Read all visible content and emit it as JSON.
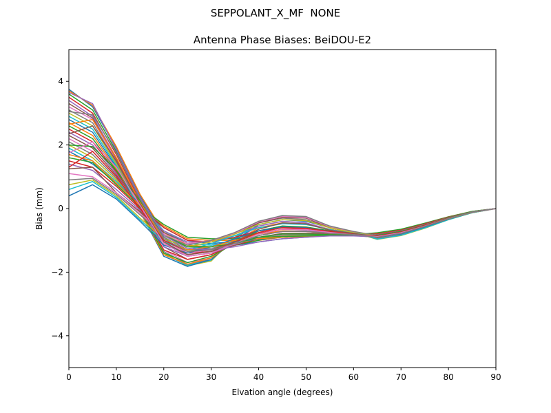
{
  "figure": {
    "suptitle": "SEPPOLANT_X_MF  NONE"
  },
  "chart_data": {
    "type": "line",
    "title": "Antenna Phase Biases: BeiDOU-E2",
    "xlabel": "Elvation angle (degrees)",
    "ylabel": "Bias (mm)",
    "xlim": [
      0,
      90
    ],
    "ylim": [
      -5,
      5
    ],
    "xticks": [
      0,
      10,
      20,
      30,
      40,
      50,
      60,
      70,
      80,
      90
    ],
    "xtick_labels": [
      "0",
      "10",
      "20",
      "30",
      "40",
      "50",
      "60",
      "70",
      "80",
      "90"
    ],
    "yticks": [
      -4,
      -2,
      0,
      2,
      4
    ],
    "ytick_labels": [
      "−4",
      "−2",
      "0",
      "2",
      "4"
    ],
    "grid": false,
    "legend": "none",
    "x": [
      0,
      5,
      10,
      15,
      20,
      25,
      30,
      35,
      40,
      45,
      50,
      55,
      60,
      65,
      70,
      75,
      80,
      85,
      90
    ],
    "colors": [
      "#1f77b4",
      "#ff7f0e",
      "#2ca02c",
      "#d62728",
      "#9467bd",
      "#8c564b",
      "#e377c2",
      "#7f7f7f",
      "#bcbd22",
      "#17becf"
    ],
    "series": [
      {
        "values": [
          3.75,
          3.2,
          1.9,
          0.4,
          -0.8,
          -1.2,
          -1.25,
          -1.15,
          -1.05,
          -0.95,
          -0.9,
          -0.85,
          -0.85,
          -0.9,
          -0.75,
          -0.55,
          -0.3,
          -0.1,
          0.0
        ]
      },
      {
        "values": [
          3.7,
          3.25,
          1.95,
          0.45,
          -0.75,
          -1.15,
          -1.2,
          -1.1,
          -1.0,
          -0.9,
          -0.88,
          -0.85,
          -0.85,
          -0.88,
          -0.75,
          -0.55,
          -0.3,
          -0.1,
          0.0
        ]
      },
      {
        "values": [
          3.6,
          3.1,
          1.8,
          0.3,
          -0.9,
          -1.3,
          -1.3,
          -1.15,
          -1.0,
          -0.85,
          -0.8,
          -0.8,
          -0.82,
          -0.9,
          -0.78,
          -0.55,
          -0.32,
          -0.12,
          0.0
        ]
      },
      {
        "values": [
          3.5,
          3.0,
          1.7,
          0.25,
          -1.0,
          -1.4,
          -1.35,
          -1.15,
          -0.95,
          -0.8,
          -0.78,
          -0.78,
          -0.82,
          -0.92,
          -0.8,
          -0.58,
          -0.33,
          -0.12,
          0.0
        ]
      },
      {
        "values": [
          3.4,
          2.9,
          1.6,
          0.2,
          -1.1,
          -1.5,
          -1.4,
          -1.1,
          -0.85,
          -0.7,
          -0.7,
          -0.75,
          -0.8,
          -0.9,
          -0.78,
          -0.56,
          -0.32,
          -0.12,
          0.0
        ]
      },
      {
        "values": [
          3.3,
          2.85,
          1.55,
          0.15,
          -1.2,
          -1.6,
          -1.45,
          -1.05,
          -0.7,
          -0.55,
          -0.6,
          -0.72,
          -0.8,
          -0.92,
          -0.8,
          -0.58,
          -0.33,
          -0.12,
          0.0
        ]
      },
      {
        "values": [
          3.2,
          2.8,
          1.5,
          0.1,
          -1.3,
          -1.7,
          -1.55,
          -1.0,
          -0.55,
          -0.4,
          -0.45,
          -0.65,
          -0.78,
          -0.95,
          -0.82,
          -0.6,
          -0.34,
          -0.13,
          0.0
        ]
      },
      {
        "values": [
          3.1,
          2.7,
          1.45,
          0.05,
          -1.35,
          -1.75,
          -1.6,
          -0.95,
          -0.45,
          -0.3,
          -0.35,
          -0.6,
          -0.76,
          -0.95,
          -0.83,
          -0.6,
          -0.34,
          -0.13,
          0.0
        ]
      },
      {
        "values": [
          3.0,
          2.6,
          1.4,
          0.0,
          -1.4,
          -1.8,
          -1.65,
          -0.9,
          -0.4,
          -0.25,
          -0.3,
          -0.58,
          -0.75,
          -0.97,
          -0.85,
          -0.62,
          -0.35,
          -0.13,
          0.0
        ]
      },
      {
        "values": [
          2.9,
          2.5,
          1.35,
          -0.05,
          -1.45,
          -1.78,
          -1.62,
          -0.92,
          -0.42,
          -0.22,
          -0.28,
          -0.55,
          -0.74,
          -0.96,
          -0.84,
          -0.61,
          -0.35,
          -0.13,
          0.0
        ]
      },
      {
        "values": [
          2.8,
          2.4,
          1.3,
          -0.1,
          -1.5,
          -1.82,
          -1.6,
          -1.0,
          -0.5,
          -0.35,
          -0.4,
          -0.6,
          -0.75,
          -0.9,
          -0.8,
          -0.58,
          -0.33,
          -0.12,
          0.0
        ]
      },
      {
        "values": [
          2.7,
          2.3,
          1.25,
          -0.1,
          -1.45,
          -1.75,
          -1.55,
          -1.05,
          -0.6,
          -0.45,
          -0.5,
          -0.65,
          -0.78,
          -0.88,
          -0.78,
          -0.56,
          -0.32,
          -0.12,
          0.0
        ]
      },
      {
        "values": [
          2.6,
          2.2,
          1.2,
          -0.05,
          -1.4,
          -1.7,
          -1.5,
          -1.1,
          -0.7,
          -0.55,
          -0.58,
          -0.7,
          -0.8,
          -0.86,
          -0.76,
          -0.55,
          -0.31,
          -0.11,
          0.0
        ]
      },
      {
        "values": [
          2.5,
          2.1,
          1.15,
          0.0,
          -1.3,
          -1.6,
          -1.45,
          -1.12,
          -0.78,
          -0.65,
          -0.66,
          -0.74,
          -0.82,
          -0.85,
          -0.74,
          -0.54,
          -0.3,
          -0.11,
          0.0
        ]
      },
      {
        "values": [
          2.4,
          2.0,
          1.1,
          0.0,
          -1.2,
          -1.5,
          -1.4,
          -1.15,
          -0.85,
          -0.72,
          -0.72,
          -0.77,
          -0.83,
          -0.84,
          -0.73,
          -0.53,
          -0.3,
          -0.11,
          0.0
        ]
      },
      {
        "values": [
          2.3,
          1.9,
          1.05,
          0.05,
          -1.1,
          -1.45,
          -1.35,
          -1.15,
          -0.9,
          -0.78,
          -0.77,
          -0.8,
          -0.84,
          -0.83,
          -0.72,
          -0.52,
          -0.29,
          -0.1,
          0.0
        ]
      },
      {
        "values": [
          2.2,
          1.8,
          1.0,
          0.05,
          -1.0,
          -1.4,
          -1.3,
          -1.12,
          -0.92,
          -0.82,
          -0.8,
          -0.82,
          -0.85,
          -0.82,
          -0.71,
          -0.51,
          -0.29,
          -0.1,
          0.0
        ]
      },
      {
        "values": [
          2.1,
          1.7,
          0.95,
          0.1,
          -0.9,
          -1.3,
          -1.25,
          -1.1,
          -0.95,
          -0.85,
          -0.83,
          -0.83,
          -0.85,
          -0.81,
          -0.7,
          -0.5,
          -0.28,
          -0.1,
          0.0
        ]
      },
      {
        "values": [
          2.0,
          1.6,
          0.9,
          0.1,
          -0.8,
          -1.2,
          -1.2,
          -1.08,
          -0.95,
          -0.87,
          -0.85,
          -0.84,
          -0.85,
          -0.8,
          -0.69,
          -0.5,
          -0.28,
          -0.1,
          0.0
        ]
      },
      {
        "values": [
          1.9,
          1.5,
          0.85,
          0.15,
          -0.7,
          -1.1,
          -1.15,
          -1.05,
          -0.96,
          -0.89,
          -0.86,
          -0.85,
          -0.85,
          -0.79,
          -0.68,
          -0.49,
          -0.27,
          -0.09,
          0.0
        ]
      },
      {
        "values": [
          1.8,
          1.4,
          0.8,
          0.15,
          -0.6,
          -1.0,
          -1.1,
          -1.03,
          -0.97,
          -0.9,
          -0.87,
          -0.85,
          -0.84,
          -0.78,
          -0.67,
          -0.48,
          -0.27,
          -0.09,
          0.0
        ]
      },
      {
        "values": [
          1.7,
          1.5,
          0.8,
          0.1,
          -0.55,
          -0.95,
          -1.0,
          -1.0,
          -0.95,
          -0.9,
          -0.87,
          -0.85,
          -0.83,
          -0.77,
          -0.66,
          -0.47,
          -0.26,
          -0.09,
          0.0
        ]
      },
      {
        "values": [
          1.6,
          1.45,
          0.75,
          0.05,
          -0.5,
          -0.9,
          -0.95,
          -0.95,
          -0.9,
          -0.88,
          -0.86,
          -0.84,
          -0.82,
          -0.76,
          -0.65,
          -0.46,
          -0.26,
          -0.09,
          0.0
        ]
      },
      {
        "values": [
          1.5,
          1.3,
          0.7,
          0.0,
          -0.6,
          -1.0,
          -1.05,
          -0.9,
          -0.7,
          -0.6,
          -0.65,
          -0.75,
          -0.8,
          -0.8,
          -0.68,
          -0.48,
          -0.27,
          -0.1,
          0.0
        ]
      },
      {
        "values": [
          1.4,
          1.2,
          0.6,
          -0.05,
          -0.7,
          -1.05,
          -1.05,
          -0.85,
          -0.55,
          -0.4,
          -0.45,
          -0.68,
          -0.78,
          -0.82,
          -0.7,
          -0.5,
          -0.28,
          -0.1,
          0.0
        ]
      },
      {
        "values": [
          1.25,
          1.3,
          0.5,
          -0.1,
          -0.75,
          -1.1,
          -1.0,
          -0.8,
          -0.45,
          -0.28,
          -0.3,
          -0.6,
          -0.75,
          -0.83,
          -0.71,
          -0.5,
          -0.28,
          -0.1,
          0.0
        ]
      },
      {
        "values": [
          1.1,
          1.0,
          0.5,
          -0.15,
          -0.8,
          -1.1,
          -1.0,
          -0.78,
          -0.42,
          -0.25,
          -0.28,
          -0.57,
          -0.74,
          -0.84,
          -0.72,
          -0.51,
          -0.29,
          -0.1,
          0.0
        ]
      },
      {
        "values": [
          0.9,
          0.95,
          0.45,
          -0.2,
          -0.85,
          -1.15,
          -1.0,
          -0.75,
          -0.4,
          -0.22,
          -0.25,
          -0.55,
          -0.72,
          -0.85,
          -0.73,
          -0.52,
          -0.29,
          -0.1,
          0.0
        ]
      },
      {
        "values": [
          0.75,
          0.9,
          0.4,
          -0.3,
          -0.95,
          -1.2,
          -1.05,
          -0.8,
          -0.5,
          -0.35,
          -0.38,
          -0.6,
          -0.76,
          -0.86,
          -0.74,
          -0.53,
          -0.3,
          -0.11,
          0.0
        ]
      },
      {
        "values": [
          0.6,
          0.85,
          0.35,
          -0.35,
          -1.05,
          -1.3,
          -1.1,
          -0.85,
          -0.6,
          -0.48,
          -0.5,
          -0.66,
          -0.78,
          -0.87,
          -0.75,
          -0.54,
          -0.3,
          -0.11,
          0.0
        ]
      },
      {
        "values": [
          0.4,
          0.75,
          0.3,
          -0.4,
          -1.15,
          -1.4,
          -1.2,
          -0.95,
          -0.7,
          -0.58,
          -0.6,
          -0.72,
          -0.8,
          -0.88,
          -0.76,
          -0.55,
          -0.31,
          -0.11,
          0.0
        ]
      },
      {
        "values": [
          2.65,
          2.8,
          1.6,
          0.2,
          -1.0,
          -1.3,
          -1.2,
          -1.0,
          -0.8,
          -0.7,
          -0.72,
          -0.78,
          -0.82,
          -0.86,
          -0.74,
          -0.53,
          -0.3,
          -0.11,
          0.0
        ]
      },
      {
        "values": [
          2.0,
          1.95,
          1.2,
          0.25,
          -0.85,
          -1.2,
          -1.2,
          -1.1,
          -0.9,
          -0.8,
          -0.8,
          -0.82,
          -0.84,
          -0.84,
          -0.72,
          -0.52,
          -0.29,
          -0.1,
          0.0
        ]
      },
      {
        "values": [
          1.3,
          1.8,
          1.0,
          0.0,
          -1.0,
          -1.35,
          -1.3,
          -1.05,
          -0.75,
          -0.6,
          -0.62,
          -0.72,
          -0.8,
          -0.86,
          -0.74,
          -0.53,
          -0.3,
          -0.11,
          0.0
        ]
      },
      {
        "values": [
          3.65,
          3.3,
          1.85,
          0.35,
          -0.85,
          -1.25,
          -1.3,
          -1.2,
          -1.05,
          -0.95,
          -0.9,
          -0.86,
          -0.86,
          -0.89,
          -0.76,
          -0.55,
          -0.31,
          -0.11,
          0.0
        ]
      },
      {
        "values": [
          2.35,
          2.6,
          1.5,
          0.15,
          -1.05,
          -1.45,
          -1.35,
          -1.05,
          -0.65,
          -0.45,
          -0.48,
          -0.68,
          -0.78,
          -0.9,
          -0.78,
          -0.56,
          -0.31,
          -0.11,
          0.0
        ]
      },
      {
        "values": [
          1.75,
          2.1,
          1.3,
          0.1,
          -1.1,
          -1.5,
          -1.4,
          -1.1,
          -0.8,
          -0.65,
          -0.66,
          -0.75,
          -0.82,
          -0.88,
          -0.76,
          -0.55,
          -0.31,
          -0.11,
          0.0
        ]
      },
      {
        "values": [
          3.05,
          2.95,
          1.75,
          0.3,
          -0.95,
          -1.35,
          -1.3,
          -1.1,
          -0.85,
          -0.72,
          -0.72,
          -0.78,
          -0.82,
          -0.9,
          -0.78,
          -0.56,
          -0.31,
          -0.11,
          0.0
        ]
      }
    ]
  }
}
